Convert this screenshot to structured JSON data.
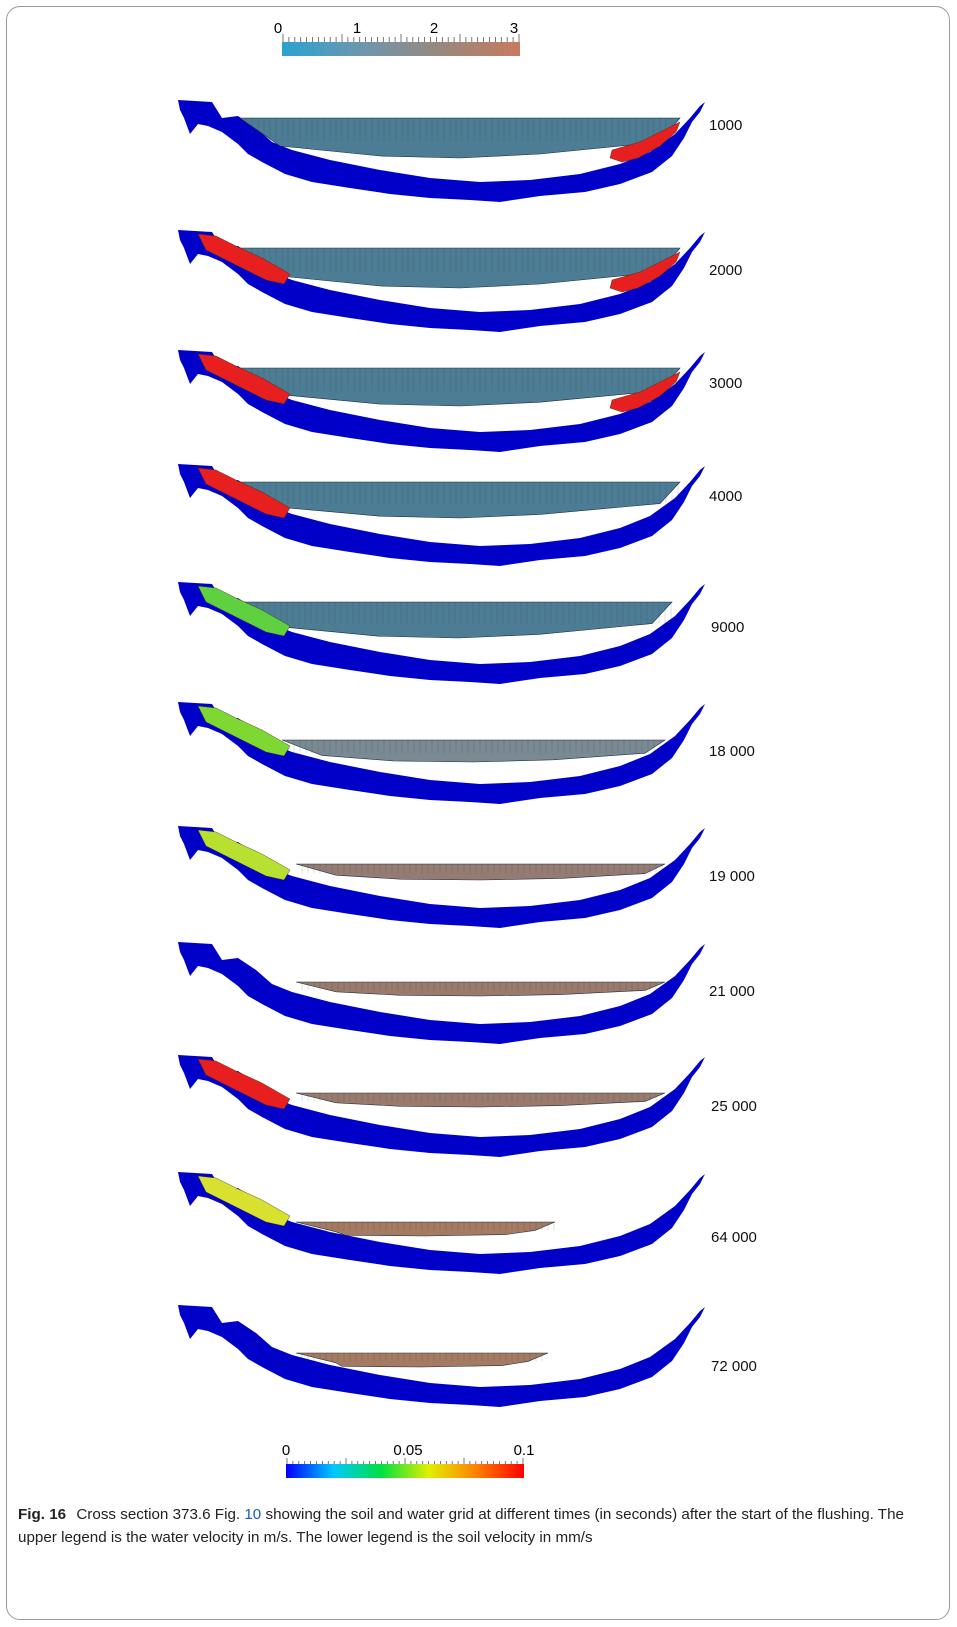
{
  "upper_legend": {
    "ticks": [
      "0",
      "1",
      "2",
      "3"
    ],
    "colors": [
      "#29a3cf",
      "#6e96ae",
      "#98887e",
      "#c77a5e"
    ]
  },
  "lower_legend": {
    "ticks": [
      "0",
      "0.05",
      "0.1"
    ],
    "colors": [
      "#0000ff",
      "#00c8ff",
      "#00e040",
      "#e0f000",
      "#ff8000",
      "#ff0000"
    ]
  },
  "panels": [
    {
      "time": "1000",
      "water_color": "#4d7c95",
      "soil_patches": [
        {
          "side": "right",
          "color": "#e81f1f"
        }
      ]
    },
    {
      "time": "2000",
      "water_color": "#4d7c95",
      "soil_patches": [
        {
          "side": "left",
          "color": "#e81f1f"
        },
        {
          "side": "right",
          "color": "#e81f1f"
        }
      ]
    },
    {
      "time": "3000",
      "water_color": "#4d7c95",
      "soil_patches": [
        {
          "side": "left",
          "color": "#e81f1f"
        },
        {
          "side": "right",
          "color": "#e81f1f"
        }
      ]
    },
    {
      "time": "4000",
      "water_color": "#4d7c95",
      "soil_patches": [
        {
          "side": "left",
          "color": "#e81f1f"
        }
      ]
    },
    {
      "time": "9000",
      "water_color": "#4d7c95",
      "soil_patches": [
        {
          "side": "left",
          "color": "#5fd040"
        }
      ]
    },
    {
      "time": "18 000",
      "water_color": "#7a8a93",
      "soil_patches": [
        {
          "side": "left",
          "color": "#7fd832"
        }
      ]
    },
    {
      "time": "19 000",
      "water_color": "#957c73",
      "soil_patches": [
        {
          "side": "left",
          "color": "#b8e030"
        }
      ]
    },
    {
      "time": "21 000",
      "water_color": "#9a7a6c",
      "soil_patches": []
    },
    {
      "time": "25 000",
      "water_color": "#9a7a6c",
      "soil_patches": [
        {
          "side": "left",
          "color": "#e81f1f"
        }
      ]
    },
    {
      "time": "64 000",
      "water_color": "#a57a62",
      "soil_patches": [
        {
          "side": "left",
          "color": "#d8e030"
        }
      ]
    },
    {
      "time": "72 000",
      "water_color": "#a57a62",
      "soil_patches": []
    }
  ],
  "caption": {
    "label": "Fig. 16",
    "text_before_link": "Cross section 373.6 Fig.",
    "link": "10",
    "text_after_link": "showing the soil and water grid at different times (in seconds) after the start of the flushing. The upper legend is the water velocity in m/s. The lower legend is the soil velocity in mm/s"
  },
  "colors": {
    "soil": "#0000c8",
    "grid_line": "#1f3040"
  }
}
